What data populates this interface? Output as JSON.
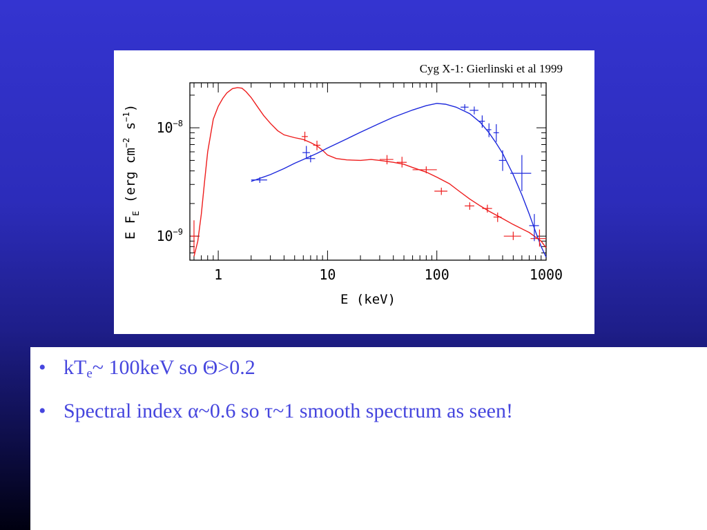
{
  "figure": {
    "citation": "Cyg X-1: Gierlinski et al 1999"
  },
  "bullets": [
    {
      "prefix": "kT",
      "sub": "e",
      "rest": "~ 100keV so Θ>0.2"
    },
    {
      "text": "Spectral index α~0.6 so τ~1 smooth spectrum as seen!"
    }
  ],
  "colors": {
    "slide_top": "#3434d0",
    "bullet_text": "#4646de",
    "red_series": "#ee1c1c",
    "blue_series": "#1c28dc"
  },
  "chart_data": {
    "type": "line",
    "x_scale": "log",
    "y_scale": "log",
    "xlabel": "E (keV)",
    "ylabel": "E F_E (erg cm^-2 s^-1)",
    "xlim": [
      0.55,
      1000
    ],
    "ylim": [
      6e-10,
      2.6e-08
    ],
    "x_ticks": [
      {
        "value": 1,
        "label": "1"
      },
      {
        "value": 10,
        "label": "10"
      },
      {
        "value": 100,
        "label": "100"
      },
      {
        "value": 1000,
        "label": "1000"
      }
    ],
    "y_ticks": [
      {
        "value": 1e-08,
        "label": "10",
        "exp": "-8"
      },
      {
        "value": 1e-09,
        "label": "10",
        "exp": "-9"
      }
    ],
    "grid": false,
    "series": [
      {
        "color": "#ee1c1c",
        "x": [
          0.6,
          0.65,
          0.7,
          0.75,
          0.8,
          0.9,
          1.0,
          1.1,
          1.2,
          1.35,
          1.5,
          1.65,
          1.8,
          2.0,
          2.3,
          2.6,
          3.0,
          3.5,
          4.0,
          5.0,
          6.0,
          7.0,
          8.0,
          9.0,
          10,
          12,
          15,
          20,
          25,
          30,
          40,
          50,
          60,
          80,
          100,
          130,
          160,
          200,
          250,
          300,
          400,
          500,
          700,
          900,
          1000
        ],
        "y": [
          6.5e-10,
          9e-10,
          1.6e-09,
          3.2e-09,
          6e-09,
          1.2e-08,
          1.58e-08,
          1.87e-08,
          2.1e-08,
          2.3e-08,
          2.35e-08,
          2.32e-08,
          2.15e-08,
          1.9e-08,
          1.55e-08,
          1.3e-08,
          1.1e-08,
          9.4e-09,
          8.6e-09,
          8.1e-09,
          7.8e-09,
          7.3e-09,
          6.8e-09,
          6.2e-09,
          5.6e-09,
          5.2e-09,
          5.05e-09,
          5e-09,
          5.1e-09,
          5e-09,
          4.8e-09,
          4.6e-09,
          4.3e-09,
          3.9e-09,
          3.5e-09,
          3.05e-09,
          2.6e-09,
          2.2e-09,
          1.9e-09,
          1.7e-09,
          1.45e-09,
          1.28e-09,
          1.08e-09,
          9e-10,
          7.8e-10
        ]
      },
      {
        "color": "#1c28dc",
        "x": [
          2.0,
          3,
          4,
          5,
          6,
          8,
          10,
          15,
          20,
          30,
          40,
          60,
          80,
          100,
          120,
          150,
          200,
          250,
          300,
          350,
          400,
          500,
          600,
          700,
          800,
          900,
          1000
        ],
        "y": [
          3.2e-09,
          3.7e-09,
          4.2e-09,
          4.7e-09,
          5.1e-09,
          5.8e-09,
          6.5e-09,
          7.9e-09,
          9.1e-09,
          1.1e-08,
          1.25e-08,
          1.46e-08,
          1.6e-08,
          1.68e-08,
          1.65e-08,
          1.55e-08,
          1.35e-08,
          1.12e-08,
          9e-09,
          7.2e-09,
          5.8e-09,
          3.7e-09,
          2.4e-09,
          1.6e-09,
          1.1e-09,
          8e-10,
          6.4e-10
        ]
      }
    ],
    "error_bars": [
      {
        "series": 0,
        "x": 0.6,
        "y": 1e-09,
        "xlo": 0.56,
        "xhi": 0.64,
        "ylo": 7e-10,
        "yhi": 1.4e-09
      },
      {
        "series": 0,
        "x": 6.2,
        "y": 8.3e-09,
        "xlo": 5.8,
        "xhi": 6.6,
        "ylo": 7.5e-09,
        "yhi": 9.2e-09
      },
      {
        "series": 0,
        "x": 8.0,
        "y": 6.9e-09,
        "xlo": 7.4,
        "xhi": 8.6,
        "ylo": 6.2e-09,
        "yhi": 7.6e-09
      },
      {
        "series": 0,
        "x": 35,
        "y": 5.1e-09,
        "xlo": 30,
        "xhi": 40,
        "ylo": 4.6e-09,
        "yhi": 5.6e-09
      },
      {
        "series": 0,
        "x": 48,
        "y": 4.8e-09,
        "xlo": 43,
        "xhi": 53,
        "ylo": 4.3e-09,
        "yhi": 5.4e-09
      },
      {
        "series": 0,
        "x": 80,
        "y": 4.1e-09,
        "xlo": 60,
        "xhi": 100,
        "ylo": 3.8e-09,
        "yhi": 4.4e-09
      },
      {
        "series": 0,
        "x": 110,
        "y": 2.6e-09,
        "xlo": 95,
        "xhi": 125,
        "ylo": 2.4e-09,
        "yhi": 2.8e-09
      },
      {
        "series": 0,
        "x": 200,
        "y": 1.9e-09,
        "xlo": 180,
        "xhi": 220,
        "ylo": 1.75e-09,
        "yhi": 2.05e-09
      },
      {
        "series": 0,
        "x": 290,
        "y": 1.8e-09,
        "xlo": 260,
        "xhi": 320,
        "ylo": 1.65e-09,
        "yhi": 1.95e-09
      },
      {
        "series": 0,
        "x": 360,
        "y": 1.5e-09,
        "xlo": 330,
        "xhi": 390,
        "ylo": 1.35e-09,
        "yhi": 1.65e-09
      },
      {
        "series": 0,
        "x": 500,
        "y": 1e-09,
        "xlo": 410,
        "xhi": 590,
        "ylo": 9.2e-10,
        "yhi": 1.1e-09
      },
      {
        "series": 0,
        "x": 870,
        "y": 9.5e-10,
        "xlo": 720,
        "xhi": 1000,
        "ylo": 8e-10,
        "yhi": 1.15e-09
      },
      {
        "series": 1,
        "x": 2.4,
        "y": 3.3e-09,
        "xlo": 2.0,
        "xhi": 2.8,
        "ylo": 3.1e-09,
        "yhi": 3.5e-09
      },
      {
        "series": 1,
        "x": 6.4,
        "y": 5.9e-09,
        "xlo": 5.9,
        "xhi": 6.9,
        "ylo": 5.2e-09,
        "yhi": 6.8e-09
      },
      {
        "series": 1,
        "x": 7.0,
        "y": 5.2e-09,
        "xlo": 6.3,
        "xhi": 7.7,
        "ylo": 4.8e-09,
        "yhi": 5.6e-09
      },
      {
        "series": 1,
        "x": 180,
        "y": 1.55e-08,
        "xlo": 165,
        "xhi": 195,
        "ylo": 1.45e-08,
        "yhi": 1.65e-08
      },
      {
        "series": 1,
        "x": 220,
        "y": 1.45e-08,
        "xlo": 200,
        "xhi": 240,
        "ylo": 1.33e-08,
        "yhi": 1.57e-08
      },
      {
        "series": 1,
        "x": 260,
        "y": 1.15e-08,
        "xlo": 245,
        "xhi": 275,
        "ylo": 1e-08,
        "yhi": 1.3e-08
      },
      {
        "series": 1,
        "x": 300,
        "y": 9.6e-09,
        "xlo": 285,
        "xhi": 315,
        "ylo": 8.2e-09,
        "yhi": 1.1e-08
      },
      {
        "series": 1,
        "x": 350,
        "y": 9e-09,
        "xlo": 330,
        "xhi": 370,
        "ylo": 7.4e-09,
        "yhi": 1.08e-08
      },
      {
        "series": 1,
        "x": 400,
        "y": 5e-09,
        "xlo": 370,
        "xhi": 430,
        "ylo": 4e-09,
        "yhi": 6.2e-09
      },
      {
        "series": 1,
        "x": 600,
        "y": 3.8e-09,
        "xlo": 470,
        "xhi": 730,
        "ylo": 2.6e-09,
        "yhi": 5.6e-09
      },
      {
        "series": 1,
        "x": 780,
        "y": 1.25e-09,
        "xlo": 700,
        "xhi": 860,
        "ylo": 9e-10,
        "yhi": 1.6e-09
      }
    ]
  }
}
